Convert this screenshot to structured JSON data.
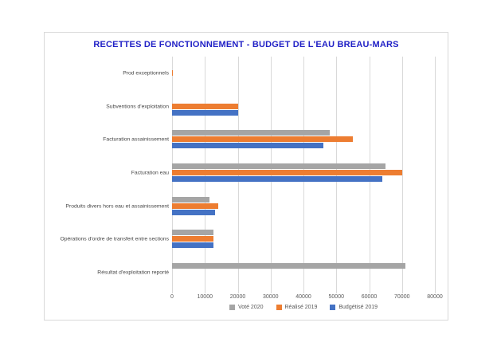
{
  "title": "RECETTES DE FONCTIONNEMENT - BUDGET DE L'EAU BREAU-MARS",
  "title_color": "#2121c6",
  "chart_data": {
    "type": "bar",
    "orientation": "horizontal",
    "title": "RECETTES DE FONCTIONNEMENT - BUDGET DE L'EAU BREAU-MARS",
    "categories": [
      "Prod exceptionnels",
      "Subventions d'exploitation",
      "Facturation assainissement",
      "Facturation eau",
      "Produits divers hors eau et assainissement",
      "Opérations d'ordre de transfert entre sections",
      "Résultat d'exploitation reporté"
    ],
    "series": [
      {
        "name": "Voté 2020",
        "color": "#a5a5a5",
        "values": [
          0,
          0,
          48000,
          65000,
          11500,
          12700,
          71000
        ]
      },
      {
        "name": "Réalisé 2019",
        "color": "#ed7d31",
        "values": [
          200,
          20000,
          55000,
          70000,
          14000,
          12700,
          0
        ]
      },
      {
        "name": "Budgétisé 2019",
        "color": "#4472c4",
        "values": [
          0,
          20000,
          46000,
          64000,
          13000,
          12700,
          0
        ]
      }
    ],
    "xlim": [
      0,
      80000
    ],
    "x_ticks": [
      0,
      10000,
      20000,
      30000,
      40000,
      50000,
      60000,
      70000,
      80000
    ],
    "gridlines": true,
    "legend_position": "bottom"
  }
}
